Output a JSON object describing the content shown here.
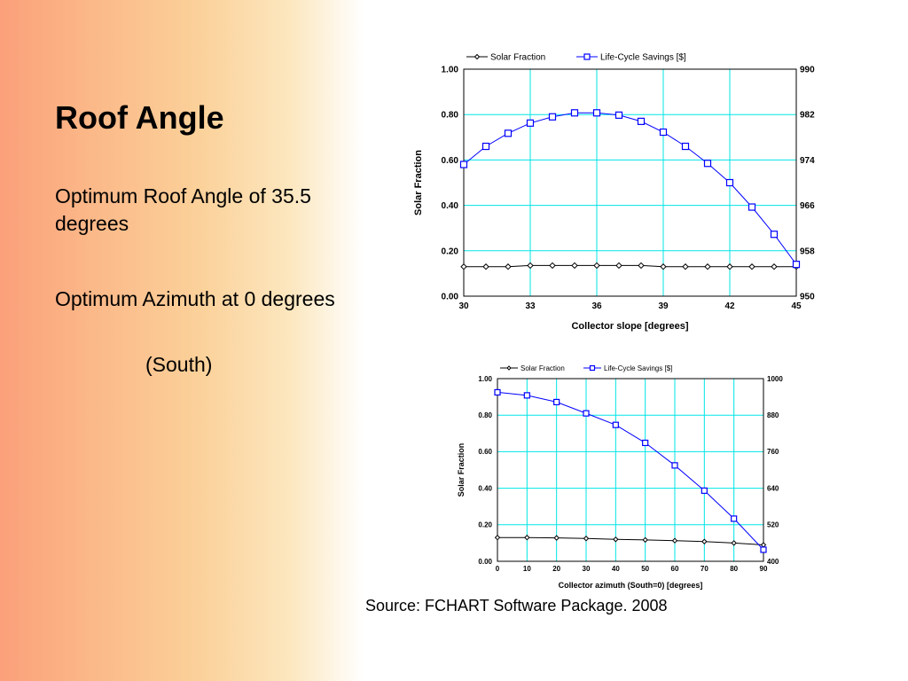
{
  "slide": {
    "title": "Roof Angle",
    "bullet1": "Optimum Roof Angle of 35.5 degrees",
    "bullet2": "Optimum Azimuth at 0 degrees",
    "bullet2_sub": "(South)",
    "source": "Source: FCHART Software Package. 2008"
  },
  "colors": {
    "solar_fraction": "#000000",
    "life_cycle": "#0000ff",
    "grid": "#00e5e5"
  },
  "chart_data": [
    {
      "type": "line",
      "title": "",
      "xlabel": "Collector slope [degrees]",
      "ylabel": "Solar Fraction",
      "xlim": [
        30,
        45
      ],
      "ylim": [
        0,
        1
      ],
      "y2lim": [
        950,
        990
      ],
      "xticks": [
        30,
        33,
        36,
        39,
        42,
        45
      ],
      "yticks": [
        "0.00",
        "0.20",
        "0.40",
        "0.60",
        "0.80",
        "1.00"
      ],
      "y2ticks": [
        950,
        958,
        966,
        974,
        982,
        990
      ],
      "grid": true,
      "legend": "top",
      "series": [
        {
          "name": "Solar Fraction",
          "axis": "left",
          "marker": "diamond",
          "x": [
            30,
            31,
            32,
            33,
            34,
            35,
            36,
            37,
            38,
            39,
            40,
            41,
            42,
            43,
            44,
            45
          ],
          "values": [
            0.13,
            0.13,
            0.13,
            0.135,
            0.135,
            0.135,
            0.135,
            0.135,
            0.135,
            0.13,
            0.13,
            0.13,
            0.13,
            0.13,
            0.13,
            0.13
          ]
        },
        {
          "name": "Life-Cycle Savings [$]",
          "axis": "right",
          "marker": "square",
          "x": [
            30,
            31,
            32,
            33,
            34,
            35,
            36,
            37,
            38,
            39,
            40,
            41,
            42,
            43,
            44,
            45
          ],
          "values": [
            973.2,
            976.4,
            978.7,
            980.5,
            981.6,
            982.3,
            982.3,
            981.9,
            980.8,
            978.9,
            976.4,
            973.4,
            970.0,
            965.7,
            960.9,
            955.6
          ]
        }
      ]
    },
    {
      "type": "line",
      "title": "",
      "xlabel": "Collector azimuth (South=0) [degrees]",
      "ylabel": "Solar Fraction",
      "xlim": [
        0,
        90
      ],
      "ylim": [
        0,
        1
      ],
      "y2lim": [
        400,
        1000
      ],
      "xticks": [
        0,
        10,
        20,
        30,
        40,
        50,
        60,
        70,
        80,
        90
      ],
      "yticks": [
        "0.00",
        "0.20",
        "0.40",
        "0.60",
        "0.80",
        "1.00"
      ],
      "y2ticks": [
        400,
        520,
        640,
        760,
        880,
        1000
      ],
      "grid": true,
      "legend": "top",
      "series": [
        {
          "name": "Solar Fraction",
          "axis": "left",
          "marker": "diamond",
          "x": [
            0,
            10,
            20,
            30,
            40,
            50,
            60,
            70,
            80,
            90
          ],
          "values": [
            0.13,
            0.13,
            0.128,
            0.125,
            0.12,
            0.117,
            0.113,
            0.108,
            0.1,
            0.09
          ]
        },
        {
          "name": "Life-Cycle Savings [$]",
          "axis": "right",
          "marker": "square",
          "x": [
            0,
            10,
            20,
            30,
            40,
            50,
            60,
            70,
            80,
            90
          ],
          "values": [
            955,
            945,
            923,
            886,
            848,
            789,
            715,
            632,
            540,
            438
          ]
        }
      ]
    }
  ]
}
